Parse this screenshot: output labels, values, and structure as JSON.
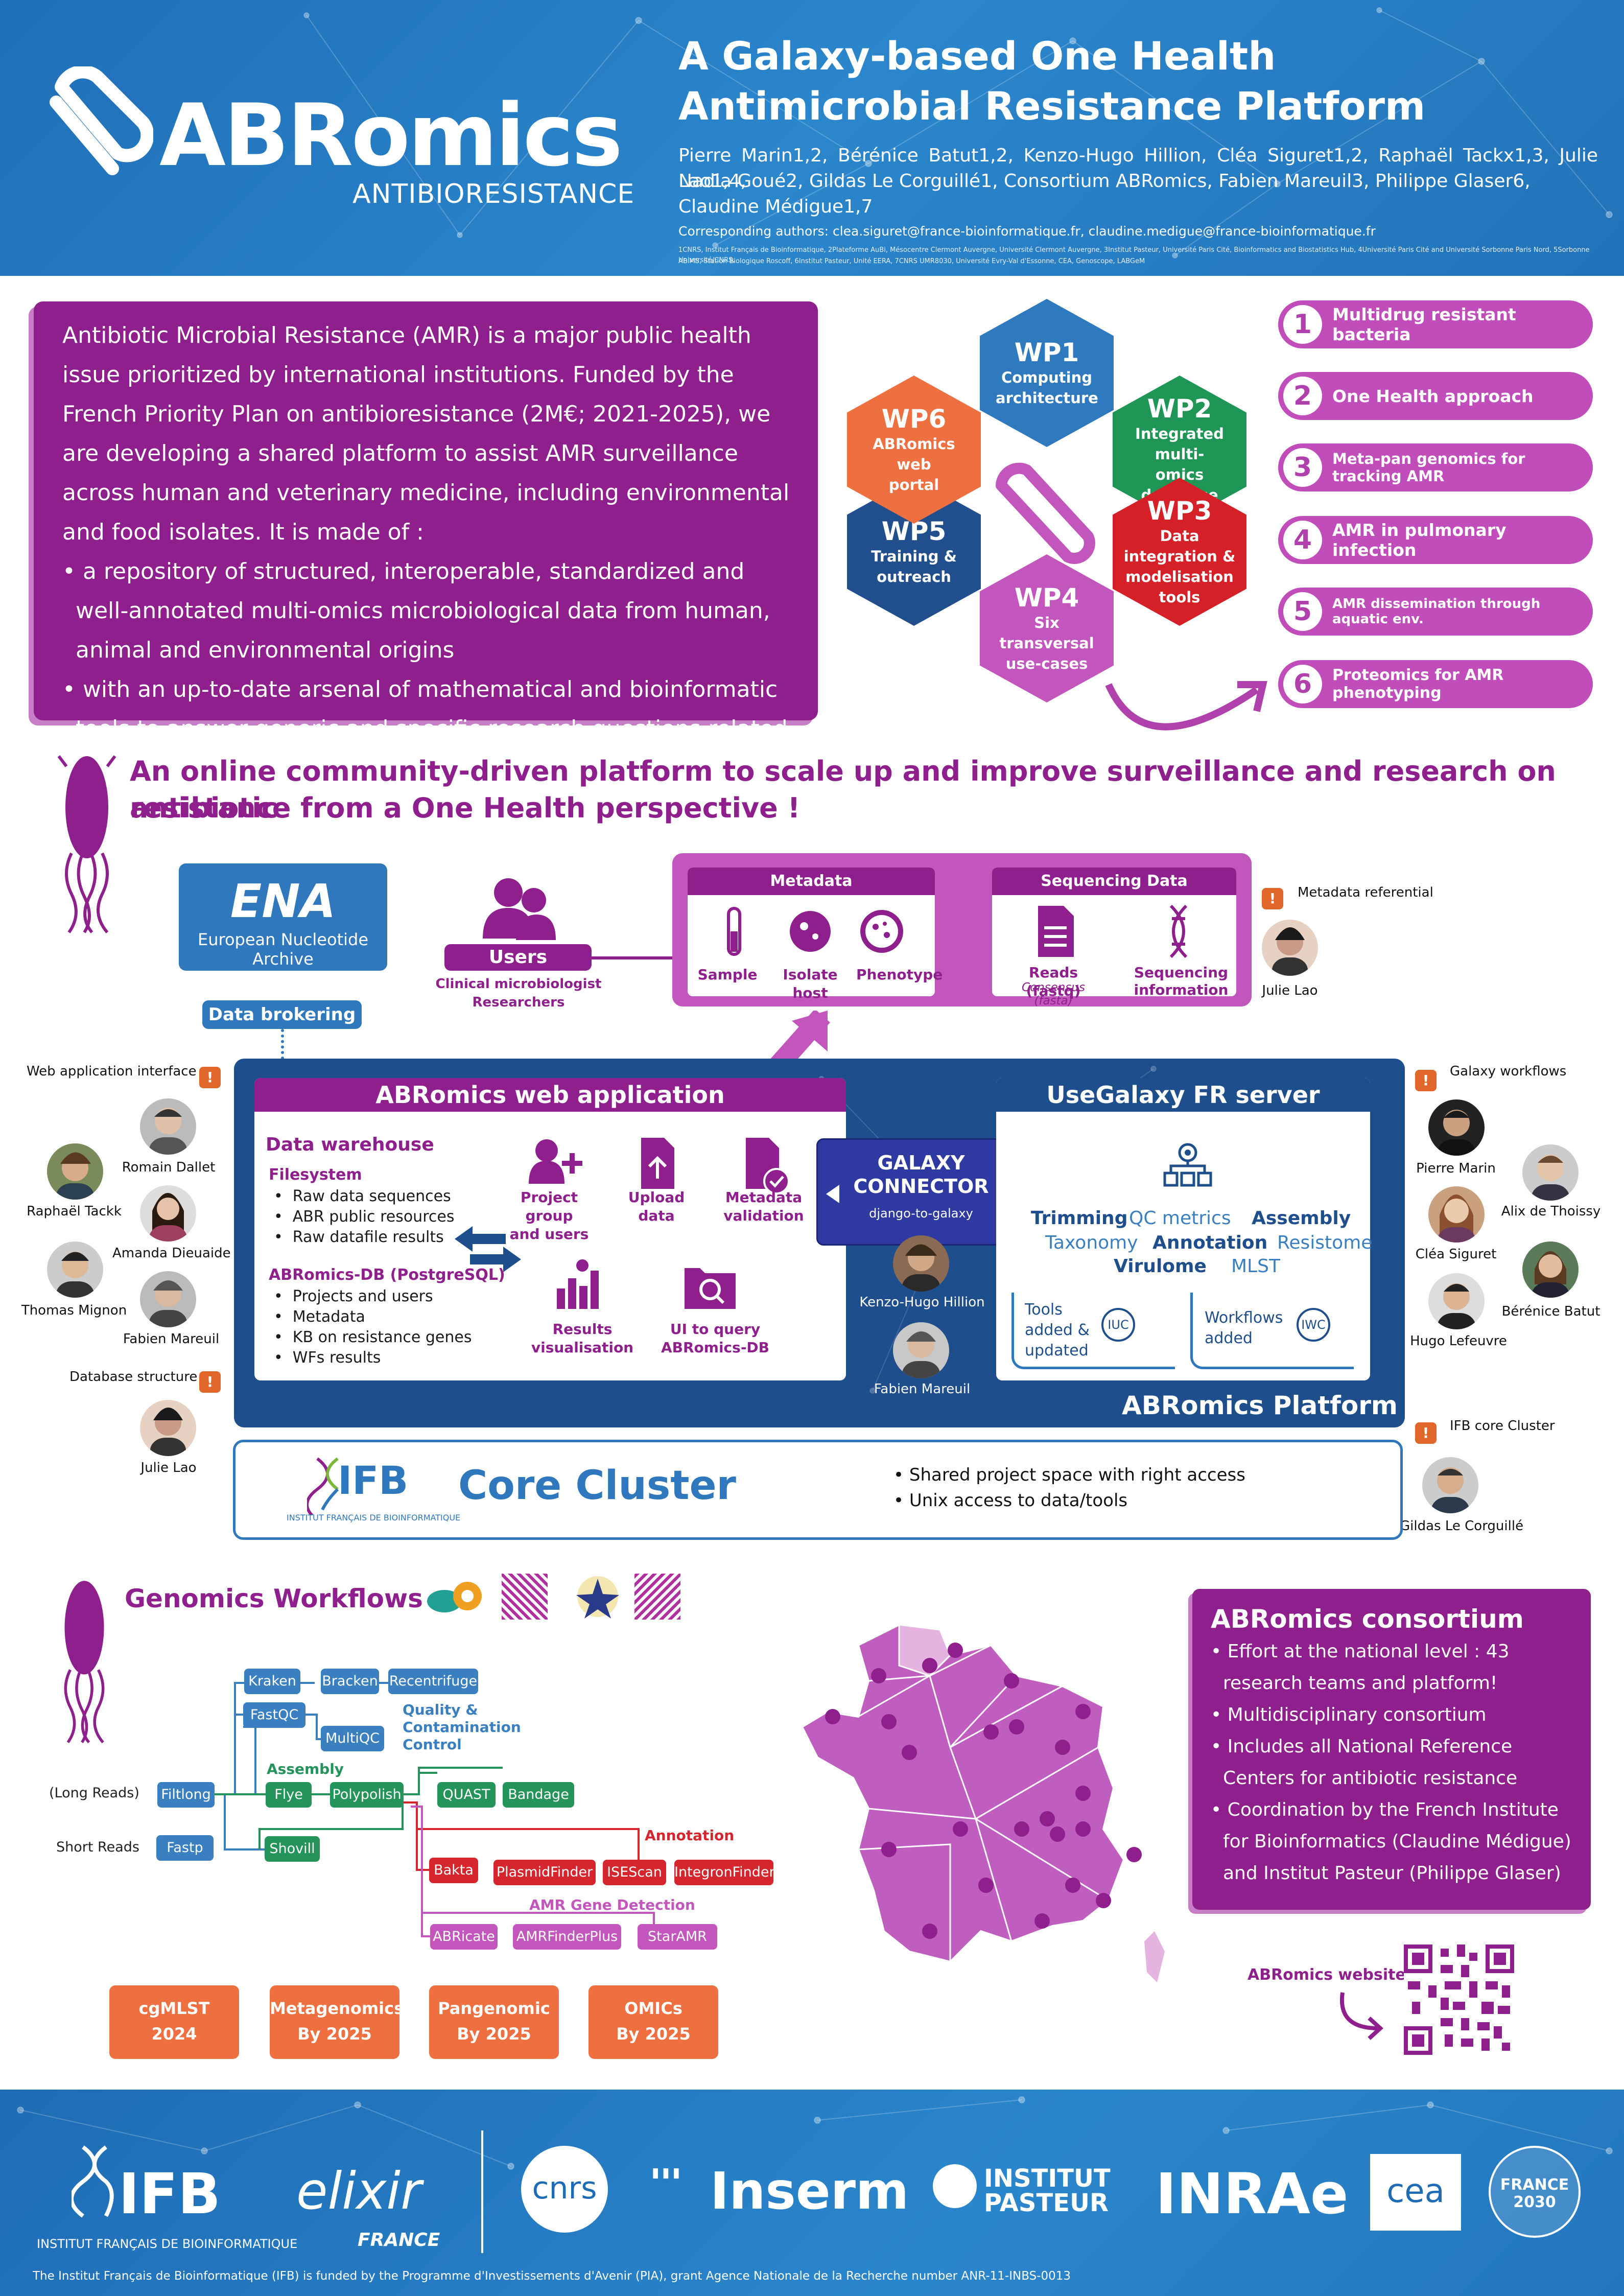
{
  "header": {
    "logo_main": "ABRomics",
    "logo_sub": "ANTIBIORESISTANCE",
    "title_line1": "A Galaxy-based One Health",
    "title_line2": "Antimicrobial Resistance Platform",
    "authors_line1": "Pierre Marin1,2, Bérénice Batut1,2, Kenzo-Hugo Hillion, Cléa Siguret1,2, Raphaël Tackx1,3, Julie Lao1,4,",
    "authors_line2": "Nadia Goué2, Gildas Le Corguillé1, Consortium ABRomics, Fabien Mareuil3, Philippe Glaser6,",
    "authors_line3": "Claudine Médigue1,7",
    "corresponding": "Corresponding authors: clea.siguret@france-bioinformatique.fr, claudine.medigue@france-bioinformatique.fr",
    "affil_line1": "1CNRS, Institut Français de Bioinformatique, 2Plateforme AuBi, Mésocentre Clermont Auvergne, Université Clermont Auvergne, 3Institut Pasteur, Université Paris Cité, Bioinformatics and Biostatistics Hub, 4Université Paris Cité and Université Sorbonne Paris Nord, 5Sorbonne Université/CNRS,",
    "affil_line2": "ABiMS, Station Biologique Roscoff, 6Institut Pasteur, Unité EERA, 7CNRS UMR8030, Université Evry-Val d'Essonne, CEA, Genoscope, LABGeM"
  },
  "intro": {
    "paragraph": "Antibiotic Microbial Resistance (AMR) is a major public health issue prioritized by international institutions. Funded by the French Priority Plan on antibioresistance (2M€; 2021-2025), we are developing a shared platform to assist AMR surveillance across human and veterinary medicine, including environmental and food isolates. It is made of :",
    "bullet1": "•  a repository of structured, interoperable, standardized and well-annotated multi-omics microbiological data from human, animal and environmental origins",
    "bullet2": "•  with an up-to-date arsenal of mathematical and bioinformatic tools to answer generic and specific research questions related to AMR."
  },
  "work_packages": [
    {
      "id": "WP1",
      "label": "Computing architecture",
      "color": "#2f7abf"
    },
    {
      "id": "WP2",
      "label": "Integrated multi-omics database",
      "color": "#1f9656"
    },
    {
      "id": "WP3",
      "label": "Data integration & modelisation tools",
      "color": "#d62027"
    },
    {
      "id": "WP4",
      "label": "Six transversal use-cases",
      "color": "#c256bd"
    },
    {
      "id": "WP5",
      "label": "Training & outreach",
      "color": "#214f8e"
    },
    {
      "id": "WP6",
      "label": "ABRomics web portal",
      "color": "#ee7041"
    }
  ],
  "use_cases": [
    {
      "num": "1",
      "label": "Multidrug resistant bacteria"
    },
    {
      "num": "2",
      "label": "One Health approach"
    },
    {
      "num": "3",
      "label": "Meta-pan genomics for tracking AMR"
    },
    {
      "num": "4",
      "label": "AMR in pulmonary infection"
    },
    {
      "num": "5",
      "label": "AMR dissemination through aquatic env."
    },
    {
      "num": "6",
      "label": "Proteomics for AMR phenotyping"
    }
  ],
  "section2": {
    "title_line1": "An online community-driven platform to scale up and improve surveillance and research on antibiotic",
    "title_line2": "resistance from a One Health perspective !"
  },
  "ena": {
    "logo": "ENA",
    "name": "European Nucleotide Archive",
    "brokering": "Data brokering"
  },
  "users": {
    "label": "Users",
    "sub1": "Clinical microbiologist",
    "sub2": "Researchers"
  },
  "metadata": {
    "head": "Metadata",
    "items": [
      "Sample",
      "Isolate host",
      "Phenotype"
    ],
    "seq_head": "Sequencing Data",
    "reads": "Reads (fastq)",
    "consensus": "Consensus (fasta)",
    "seq_info1": "Sequencing",
    "seq_info2": "information",
    "referential": "Metadata referential",
    "referential_person": "Julie Lao"
  },
  "webapp": {
    "title": "ABRomics web application",
    "warehouse": "Data warehouse",
    "filesystem": "Filesystem",
    "fs_items": [
      "Raw data sequences",
      "ABR public resources",
      "Raw datafile results"
    ],
    "db": "ABRomics-DB (PostgreSQL)",
    "db_items": [
      "Projects and users",
      "Metadata",
      "KB on resistance genes",
      "WFs results"
    ],
    "icons": [
      {
        "l1": "Project group",
        "l2": "and users"
      },
      {
        "l1": "Upload",
        "l2": "data"
      },
      {
        "l1": "Metadata",
        "l2": "validation"
      },
      {
        "l1": "Results",
        "l2": "visualisation"
      },
      {
        "l1": "UI to query",
        "l2": "ABRomics-DB"
      }
    ]
  },
  "connector": {
    "l1": "GALAXY",
    "l2": "CONNECTOR",
    "sub": "django-to-galaxy",
    "person1": "Kenzo-Hugo Hillion",
    "person2": "Fabien Mareuil"
  },
  "galaxy": {
    "title": "UseGalaxy FR server",
    "tools": [
      "Trimming",
      "QC metrics",
      "Assembly",
      "Taxonomy",
      "Annotation",
      "Resistome",
      "Virulome",
      "MLST"
    ],
    "tools_added1": "Tools",
    "tools_added2": "added &",
    "tools_added3": "updated",
    "iuc": "IUC",
    "wf_added1": "Workflows",
    "wf_added2": "added",
    "iwc": "IWC"
  },
  "platform_label": "ABRomics Platform",
  "left_people": {
    "web_label": "Web application interface",
    "names": [
      "Romain Dallet",
      "Raphaël Tackk",
      "Amanda Dieuaide",
      "Thomas Mignon",
      "Fabien Mareuil"
    ],
    "db_label": "Database structure",
    "db_person": "Julie Lao"
  },
  "right_people": {
    "gx_label": "Galaxy workflows",
    "names": [
      "Pierre Marin",
      "Alix de Thoissy",
      "Cléa Siguret",
      "Bérénice Batut",
      "Hugo Lefeuvre"
    ],
    "ifb_label": "IFB core Cluster",
    "ifb_person": "Gildas Le Corguillé"
  },
  "cluster": {
    "ifb": "IFB",
    "ifb_sub": "INSTITUT FRANÇAIS DE BIOINFORMATIQUE",
    "title": "Core Cluster",
    "b1": "•  Shared project space with right access",
    "b2": "•  Unix access to data/tools"
  },
  "workflows": {
    "title": "Genomics Workflows",
    "long_reads": "(Long Reads)",
    "short_reads": "Short Reads",
    "qc_label1": "Quality &",
    "qc_label2": "Contamination",
    "qc_label3": "Control",
    "assembly_label": "Assembly",
    "annotation_label": "Annotation",
    "amr_label": "AMR Gene Detection",
    "tools": {
      "kraken": "Kraken",
      "bracken": "Bracken",
      "recentrifuge": "Recentrifuge",
      "fastqc": "FastQC",
      "multiqc": "MultiQC",
      "filtlong": "Filtlong",
      "fastp": "Fastp",
      "flye": "Flye",
      "polypolish": "Polypolish",
      "shovill": "Shovill",
      "quast": "QUAST",
      "bandage": "Bandage",
      "bakta": "Bakta",
      "plasmidfinder": "PlasmidFinder",
      "isescan": "ISEScan",
      "integronfinder": "IntegronFinder",
      "abricate": "ABRicate",
      "amrfinderplus": "AMRFinderPlus",
      "staramr": "StarAMR"
    },
    "roadmap": [
      {
        "l1": "cgMLST",
        "l2": "2024"
      },
      {
        "l1": "Metagenomics",
        "l2": "By 2025"
      },
      {
        "l1": "Pangenomic",
        "l2": "By 2025"
      },
      {
        "l1": "OMICs",
        "l2": "By 2025"
      }
    ]
  },
  "consortium": {
    "title": "ABRomics consortium",
    "items": [
      "•  Effort at the national level : 43 research teams and platform!",
      "•  Multidisciplinary consortium",
      "•  Includes all National Reference Centers for antibiotic resistance",
      "•  Coordination by the French Institute for Bioinformatics (Claudine Médigue) and Institut Pasteur (Philippe Glaser)"
    ]
  },
  "website_label": "ABRomics website",
  "footer": {
    "logos": [
      "IFB",
      "elixir",
      "cnrs",
      "Inserm",
      "INSTITUT PASTEUR",
      "INRAe",
      "cea",
      "FRANCE 2030"
    ],
    "ifb_sub": "INSTITUT FRANÇAIS DE BIOINFORMATIQUE",
    "elixir_sub": "FRANCE",
    "funding": "The Institut Français de Bioinformatique (IFB) is funded by the Programme d'Investissements d'Avenir (PIA), grant Agence Nationale de la Recherche number ANR-11-INBS-0013"
  }
}
